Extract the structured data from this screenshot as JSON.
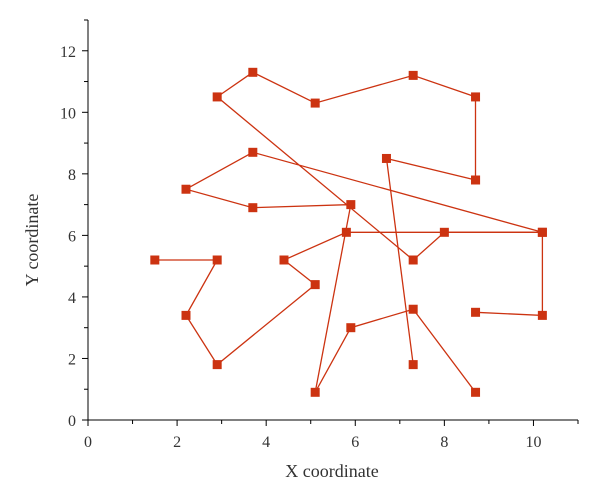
{
  "chart_data": {
    "type": "line",
    "title": "",
    "xlabel": "X coordinate",
    "ylabel": "Y coordinate",
    "xlim": [
      0,
      11
    ],
    "ylim": [
      0,
      13
    ],
    "x_ticks": [
      0,
      2,
      4,
      6,
      8,
      10
    ],
    "y_ticks": [
      0,
      2,
      4,
      6,
      8,
      10,
      12
    ],
    "grid": false,
    "legend": "none",
    "marker": "square",
    "color": "#cc3311",
    "series": [
      {
        "name": "",
        "points": [
          [
            8.7,
            7.8
          ],
          [
            6.7,
            8.5
          ],
          [
            7.3,
            1.8
          ]
        ]
      },
      {
        "name": "",
        "points": [
          [
            8.7,
            3.5
          ],
          [
            10.2,
            3.4
          ],
          [
            10.2,
            6.1
          ],
          [
            5.8,
            6.1
          ],
          [
            4.4,
            5.2
          ],
          [
            5.1,
            4.4
          ],
          [
            2.9,
            1.8
          ],
          [
            2.2,
            3.4
          ],
          [
            2.9,
            5.2
          ],
          [
            1.5,
            5.2
          ]
        ]
      },
      {
        "name": "",
        "points": [
          [
            8.7,
            0.9
          ],
          [
            7.3,
            3.6
          ],
          [
            5.9,
            3.0
          ],
          [
            5.1,
            0.9
          ],
          [
            5.9,
            7.0
          ],
          [
            3.7,
            6.9
          ],
          [
            2.2,
            7.5
          ],
          [
            3.7,
            8.7
          ],
          [
            10.2,
            6.1
          ],
          [
            8.0,
            6.1
          ],
          [
            7.3,
            5.2
          ],
          [
            2.9,
            10.5
          ],
          [
            3.7,
            11.3
          ],
          [
            5.1,
            10.3
          ],
          [
            7.3,
            11.2
          ],
          [
            8.7,
            10.5
          ],
          [
            8.7,
            7.8
          ]
        ]
      }
    ]
  }
}
